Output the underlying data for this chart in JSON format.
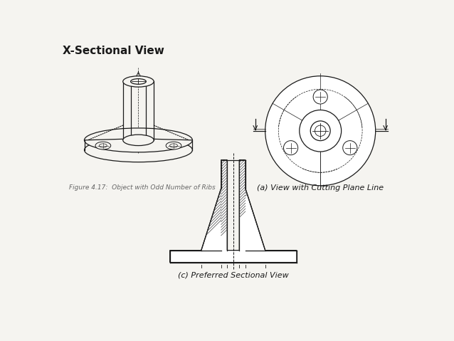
{
  "title": "X-Sectional View",
  "label_a": "(a) View with Cutting Plane Line",
  "label_c": "(c) Preferred Sectional View",
  "figure_caption": "Figure 4.17:  Object with Odd Number of Ribs",
  "bg_color": "#f5f4f0",
  "line_color": "#1a1a1a",
  "hatch_color": "#444444",
  "title_fontsize": 11,
  "label_fontsize": 8,
  "caption_fontsize": 6.5
}
